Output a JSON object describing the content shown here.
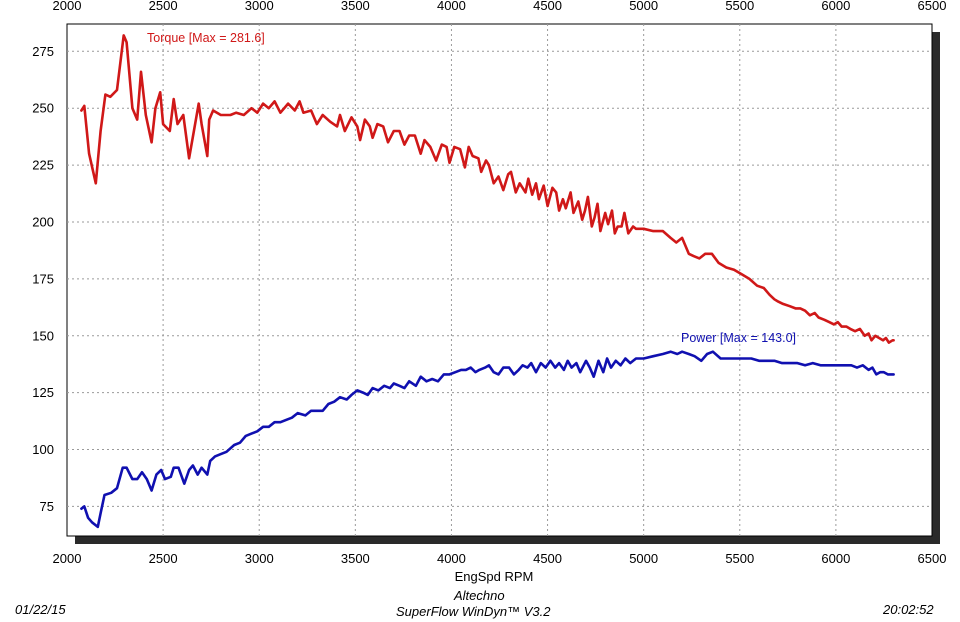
{
  "footer": {
    "date": "01/22/15",
    "company": "Altechno",
    "software": "SuperFlow WinDyn™ V3.2",
    "time": "20:02:52"
  },
  "colors": {
    "torque": "#d01818",
    "power": "#1010b0",
    "grid": "#9a9a9a",
    "shadow": "#2a2a2a"
  },
  "chart_data": {
    "type": "line",
    "title": "",
    "xlabel": "EngSpd RPM",
    "ylabel": "",
    "xlim": [
      2000,
      6500
    ],
    "ylim": [
      62,
      287
    ],
    "x_ticks": [
      2000,
      2500,
      3000,
      3500,
      4000,
      4500,
      5000,
      5500,
      6000,
      6500
    ],
    "y_ticks": [
      75,
      100,
      125,
      150,
      175,
      200,
      225,
      250,
      275
    ],
    "grid": true,
    "legend": "labels on lines",
    "series": [
      {
        "name": "Torque",
        "label": "Torque [Max = 281.6]",
        "color": "#d01818",
        "points": [
          [
            2075,
            249
          ],
          [
            2090,
            251
          ],
          [
            2115,
            230
          ],
          [
            2150,
            217
          ],
          [
            2175,
            240
          ],
          [
            2200,
            256
          ],
          [
            2225,
            255
          ],
          [
            2260,
            258
          ],
          [
            2295,
            282
          ],
          [
            2310,
            279
          ],
          [
            2340,
            250
          ],
          [
            2365,
            245
          ],
          [
            2385,
            266
          ],
          [
            2410,
            247
          ],
          [
            2440,
            235
          ],
          [
            2460,
            250
          ],
          [
            2485,
            257
          ],
          [
            2500,
            243
          ],
          [
            2535,
            240
          ],
          [
            2555,
            254
          ],
          [
            2575,
            243
          ],
          [
            2605,
            247
          ],
          [
            2635,
            228
          ],
          [
            2660,
            240
          ],
          [
            2685,
            252
          ],
          [
            2700,
            243
          ],
          [
            2730,
            229
          ],
          [
            2740,
            245
          ],
          [
            2760,
            249
          ],
          [
            2800,
            247
          ],
          [
            2850,
            247
          ],
          [
            2880,
            248
          ],
          [
            2920,
            247
          ],
          [
            2960,
            250
          ],
          [
            2990,
            248
          ],
          [
            3020,
            252
          ],
          [
            3050,
            250
          ],
          [
            3080,
            253
          ],
          [
            3110,
            248
          ],
          [
            3150,
            252
          ],
          [
            3185,
            249
          ],
          [
            3210,
            253
          ],
          [
            3230,
            248
          ],
          [
            3270,
            249
          ],
          [
            3300,
            243
          ],
          [
            3330,
            247
          ],
          [
            3370,
            244
          ],
          [
            3405,
            242
          ],
          [
            3420,
            247
          ],
          [
            3445,
            240
          ],
          [
            3480,
            246
          ],
          [
            3510,
            242
          ],
          [
            3525,
            236
          ],
          [
            3550,
            245
          ],
          [
            3575,
            242
          ],
          [
            3590,
            237
          ],
          [
            3615,
            243
          ],
          [
            3645,
            242
          ],
          [
            3670,
            235
          ],
          [
            3700,
            240
          ],
          [
            3730,
            240
          ],
          [
            3755,
            234
          ],
          [
            3780,
            238
          ],
          [
            3810,
            238
          ],
          [
            3840,
            230
          ],
          [
            3860,
            236
          ],
          [
            3890,
            233
          ],
          [
            3920,
            227
          ],
          [
            3950,
            234
          ],
          [
            3975,
            233
          ],
          [
            3990,
            226
          ],
          [
            4015,
            233
          ],
          [
            4045,
            232
          ],
          [
            4070,
            224
          ],
          [
            4090,
            233
          ],
          [
            4110,
            229
          ],
          [
            4140,
            228
          ],
          [
            4155,
            222
          ],
          [
            4180,
            227
          ],
          [
            4195,
            225
          ],
          [
            4220,
            217
          ],
          [
            4245,
            220
          ],
          [
            4270,
            214
          ],
          [
            4295,
            221
          ],
          [
            4310,
            222
          ],
          [
            4335,
            213
          ],
          [
            4355,
            217
          ],
          [
            4385,
            213
          ],
          [
            4400,
            219
          ],
          [
            4420,
            212
          ],
          [
            4440,
            217
          ],
          [
            4455,
            210
          ],
          [
            4480,
            216
          ],
          [
            4500,
            207
          ],
          [
            4525,
            215
          ],
          [
            4545,
            213
          ],
          [
            4560,
            205
          ],
          [
            4580,
            210
          ],
          [
            4595,
            206
          ],
          [
            4620,
            213
          ],
          [
            4635,
            204
          ],
          [
            4660,
            209
          ],
          [
            4680,
            201
          ],
          [
            4695,
            205
          ],
          [
            4710,
            211
          ],
          [
            4730,
            198
          ],
          [
            4745,
            202
          ],
          [
            4760,
            208
          ],
          [
            4775,
            196
          ],
          [
            4800,
            204
          ],
          [
            4815,
            199
          ],
          [
            4835,
            205
          ],
          [
            4850,
            195
          ],
          [
            4865,
            198
          ],
          [
            4885,
            198
          ],
          [
            4900,
            204
          ],
          [
            4920,
            195
          ],
          [
            4945,
            198
          ],
          [
            4960,
            197
          ],
          [
            5000,
            197
          ],
          [
            5050,
            196
          ],
          [
            5100,
            196
          ],
          [
            5140,
            193
          ],
          [
            5170,
            191
          ],
          [
            5200,
            193
          ],
          [
            5235,
            186
          ],
          [
            5260,
            185
          ],
          [
            5290,
            184
          ],
          [
            5320,
            186
          ],
          [
            5355,
            186
          ],
          [
            5390,
            182
          ],
          [
            5430,
            180
          ],
          [
            5470,
            179
          ],
          [
            5510,
            177
          ],
          [
            5550,
            175
          ],
          [
            5590,
            172
          ],
          [
            5625,
            171
          ],
          [
            5655,
            168
          ],
          [
            5680,
            166
          ],
          [
            5700,
            165
          ],
          [
            5725,
            164
          ],
          [
            5760,
            163
          ],
          [
            5790,
            162
          ],
          [
            5815,
            162
          ],
          [
            5840,
            161
          ],
          [
            5865,
            159
          ],
          [
            5890,
            160
          ],
          [
            5910,
            158
          ],
          [
            5940,
            157
          ],
          [
            5965,
            156
          ],
          [
            5990,
            155
          ],
          [
            6010,
            156
          ],
          [
            6030,
            154
          ],
          [
            6055,
            154
          ],
          [
            6075,
            153
          ],
          [
            6100,
            152
          ],
          [
            6125,
            153
          ],
          [
            6150,
            150
          ],
          [
            6170,
            151
          ],
          [
            6185,
            148
          ],
          [
            6205,
            150
          ],
          [
            6225,
            149
          ],
          [
            6245,
            148
          ],
          [
            6260,
            149
          ],
          [
            6275,
            147
          ],
          [
            6295,
            148
          ],
          [
            6300,
            148
          ]
        ]
      },
      {
        "name": "Power",
        "label": "Power  [Max = 143.0]",
        "color": "#1010b0",
        "points": [
          [
            2075,
            74
          ],
          [
            2090,
            75
          ],
          [
            2110,
            70
          ],
          [
            2130,
            68
          ],
          [
            2160,
            66
          ],
          [
            2175,
            72
          ],
          [
            2195,
            80
          ],
          [
            2230,
            81
          ],
          [
            2260,
            83
          ],
          [
            2290,
            92
          ],
          [
            2310,
            92
          ],
          [
            2340,
            87
          ],
          [
            2365,
            87
          ],
          [
            2390,
            90
          ],
          [
            2415,
            87
          ],
          [
            2440,
            82
          ],
          [
            2465,
            89
          ],
          [
            2490,
            91
          ],
          [
            2510,
            87
          ],
          [
            2540,
            88
          ],
          [
            2555,
            92
          ],
          [
            2580,
            92
          ],
          [
            2610,
            85
          ],
          [
            2635,
            91
          ],
          [
            2655,
            93
          ],
          [
            2680,
            89
          ],
          [
            2700,
            92
          ],
          [
            2730,
            89
          ],
          [
            2745,
            95
          ],
          [
            2770,
            97
          ],
          [
            2800,
            98
          ],
          [
            2830,
            99
          ],
          [
            2870,
            102
          ],
          [
            2900,
            103
          ],
          [
            2930,
            106
          ],
          [
            2960,
            107
          ],
          [
            2990,
            108
          ],
          [
            3020,
            110
          ],
          [
            3050,
            110
          ],
          [
            3080,
            112
          ],
          [
            3110,
            112
          ],
          [
            3140,
            113
          ],
          [
            3170,
            114
          ],
          [
            3200,
            116
          ],
          [
            3240,
            115
          ],
          [
            3270,
            117
          ],
          [
            3300,
            117
          ],
          [
            3330,
            117
          ],
          [
            3360,
            120
          ],
          [
            3390,
            121
          ],
          [
            3420,
            123
          ],
          [
            3455,
            122
          ],
          [
            3480,
            124
          ],
          [
            3510,
            126
          ],
          [
            3540,
            125
          ],
          [
            3565,
            124
          ],
          [
            3590,
            127
          ],
          [
            3620,
            126
          ],
          [
            3650,
            128
          ],
          [
            3680,
            127
          ],
          [
            3700,
            129
          ],
          [
            3730,
            128
          ],
          [
            3755,
            127
          ],
          [
            3780,
            130
          ],
          [
            3815,
            128
          ],
          [
            3840,
            132
          ],
          [
            3870,
            130
          ],
          [
            3900,
            131
          ],
          [
            3930,
            130
          ],
          [
            3960,
            133
          ],
          [
            3990,
            133
          ],
          [
            4020,
            134
          ],
          [
            4050,
            135
          ],
          [
            4075,
            135
          ],
          [
            4100,
            136
          ],
          [
            4125,
            134
          ],
          [
            4145,
            135
          ],
          [
            4175,
            136
          ],
          [
            4195,
            137
          ],
          [
            4220,
            134
          ],
          [
            4245,
            133
          ],
          [
            4270,
            136
          ],
          [
            4300,
            136
          ],
          [
            4325,
            133
          ],
          [
            4350,
            135
          ],
          [
            4370,
            137
          ],
          [
            4395,
            136
          ],
          [
            4415,
            138
          ],
          [
            4440,
            134
          ],
          [
            4465,
            138
          ],
          [
            4490,
            136
          ],
          [
            4515,
            139
          ],
          [
            4540,
            136
          ],
          [
            4560,
            138
          ],
          [
            4585,
            135
          ],
          [
            4605,
            139
          ],
          [
            4625,
            136
          ],
          [
            4650,
            138
          ],
          [
            4670,
            134
          ],
          [
            4700,
            139
          ],
          [
            4720,
            136
          ],
          [
            4740,
            132
          ],
          [
            4765,
            139
          ],
          [
            4790,
            134
          ],
          [
            4810,
            140
          ],
          [
            4830,
            136
          ],
          [
            4855,
            139
          ],
          [
            4880,
            137
          ],
          [
            4905,
            140
          ],
          [
            4930,
            138
          ],
          [
            4960,
            140
          ],
          [
            5000,
            140
          ],
          [
            5050,
            141
          ],
          [
            5100,
            142
          ],
          [
            5140,
            143
          ],
          [
            5175,
            142
          ],
          [
            5200,
            143
          ],
          [
            5235,
            142
          ],
          [
            5265,
            141
          ],
          [
            5300,
            139
          ],
          [
            5330,
            142
          ],
          [
            5360,
            143
          ],
          [
            5400,
            140
          ],
          [
            5440,
            140
          ],
          [
            5480,
            140
          ],
          [
            5520,
            140
          ],
          [
            5560,
            140
          ],
          [
            5600,
            139
          ],
          [
            5640,
            139
          ],
          [
            5680,
            139
          ],
          [
            5720,
            138
          ],
          [
            5760,
            138
          ],
          [
            5800,
            138
          ],
          [
            5840,
            137
          ],
          [
            5880,
            138
          ],
          [
            5920,
            137
          ],
          [
            5960,
            137
          ],
          [
            6000,
            137
          ],
          [
            6040,
            137
          ],
          [
            6080,
            137
          ],
          [
            6110,
            136
          ],
          [
            6140,
            137
          ],
          [
            6170,
            135
          ],
          [
            6190,
            136
          ],
          [
            6210,
            133
          ],
          [
            6230,
            134
          ],
          [
            6250,
            134
          ],
          [
            6270,
            133
          ],
          [
            6290,
            133
          ],
          [
            6300,
            133
          ]
        ]
      }
    ]
  }
}
